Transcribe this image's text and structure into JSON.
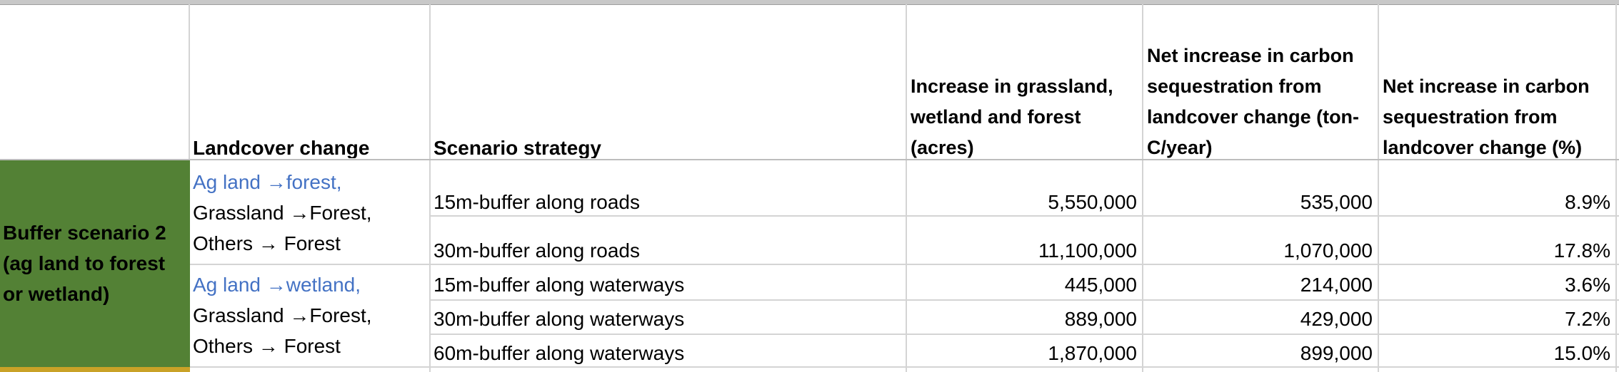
{
  "colors": {
    "scenario_fill": "#538135",
    "next_row_fill": "#c9a227",
    "link_text": "#4472c4",
    "gridline": "#d4d4d4"
  },
  "headers": {
    "landcover_change": "Landcover change",
    "scenario_strategy": "Scenario strategy",
    "increase_acres": "Increase in grassland, wetland and forest (acres)",
    "net_increase_ton": "Net increase in carbon sequestration from landcover change (ton-C/year)",
    "net_increase_pct": "Net increase in carbon sequestration from landcover change (%)"
  },
  "scenario": {
    "label": "Buffer scenario 2 (ag land to forest or wetland)"
  },
  "groups": [
    {
      "landcover_lines": [
        "Ag land →forest,",
        "Grassland →Forest,",
        "Others → Forest"
      ]
    },
    {
      "landcover_lines": [
        "Ag land →wetland,",
        "Grassland →Forest,",
        "Others → Forest"
      ]
    }
  ],
  "rows": [
    {
      "strategy": "15m-buffer along roads",
      "acres": "5,550,000",
      "ton": "535,000",
      "pct": "8.9%"
    },
    {
      "strategy": "30m-buffer along roads",
      "acres": "11,100,000",
      "ton": "1,070,000",
      "pct": "17.8%"
    },
    {
      "strategy": "15m-buffer along waterways",
      "acres": "445,000",
      "ton": "214,000",
      "pct": "3.6%"
    },
    {
      "strategy": "30m-buffer along waterways",
      "acres": "889,000",
      "ton": "429,000",
      "pct": "7.2%"
    },
    {
      "strategy": "60m-buffer along waterways",
      "acres": "1,870,000",
      "ton": "899,000",
      "pct": "15.0%"
    }
  ]
}
